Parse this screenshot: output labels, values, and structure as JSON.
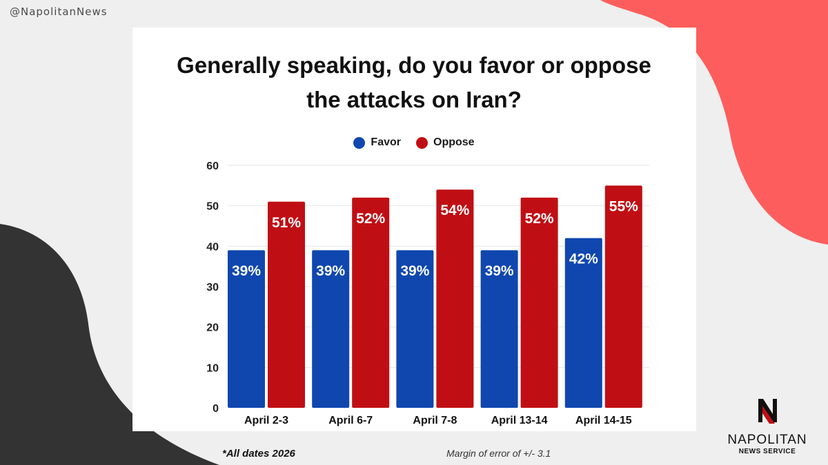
{
  "handle": "@NapolitanNews",
  "title_lines": [
    "Generally speaking, do you favor or oppose",
    "the attacks on Iran?"
  ],
  "legend": [
    {
      "label": "Favor",
      "color": "#0f47af"
    },
    {
      "label": "Oppose",
      "color": "#c00f14"
    }
  ],
  "chart_data": {
    "type": "bar",
    "title": "Generally speaking, do you favor or oppose the attacks on Iran?",
    "categories": [
      "April 2-3",
      "April 6-7",
      "April 7-8",
      "April 13-14",
      "April 14-15"
    ],
    "series": [
      {
        "name": "Favor",
        "values": [
          39,
          39,
          39,
          39,
          42
        ],
        "labels": [
          "39%",
          "39%",
          "39%",
          "39%",
          "42%"
        ],
        "color": "#0f47af"
      },
      {
        "name": "Oppose",
        "values": [
          51,
          52,
          54,
          52,
          55
        ],
        "labels": [
          "51%",
          "52%",
          "54%",
          "52%",
          "55%"
        ],
        "color": "#c00f14"
      }
    ],
    "ylim": [
      0,
      60
    ],
    "yticks": [
      "0",
      "10",
      "20",
      "30",
      "40",
      "50",
      "60"
    ],
    "ytick_values": [
      0,
      10,
      20,
      30,
      40,
      50,
      60
    ],
    "xlabel": "",
    "ylabel": "",
    "grid": true,
    "legend": "top-center"
  },
  "footnote": "*All dates 2026",
  "margin_of_error": "Margin of error of +/- 3.1",
  "logo": {
    "name": "NAPOLITAN",
    "subtitle": "NEWS SERVICE",
    "mark": "N"
  },
  "colors": {
    "coral": "#fd5e5d",
    "dark": "#333333",
    "background": "#efefef"
  }
}
